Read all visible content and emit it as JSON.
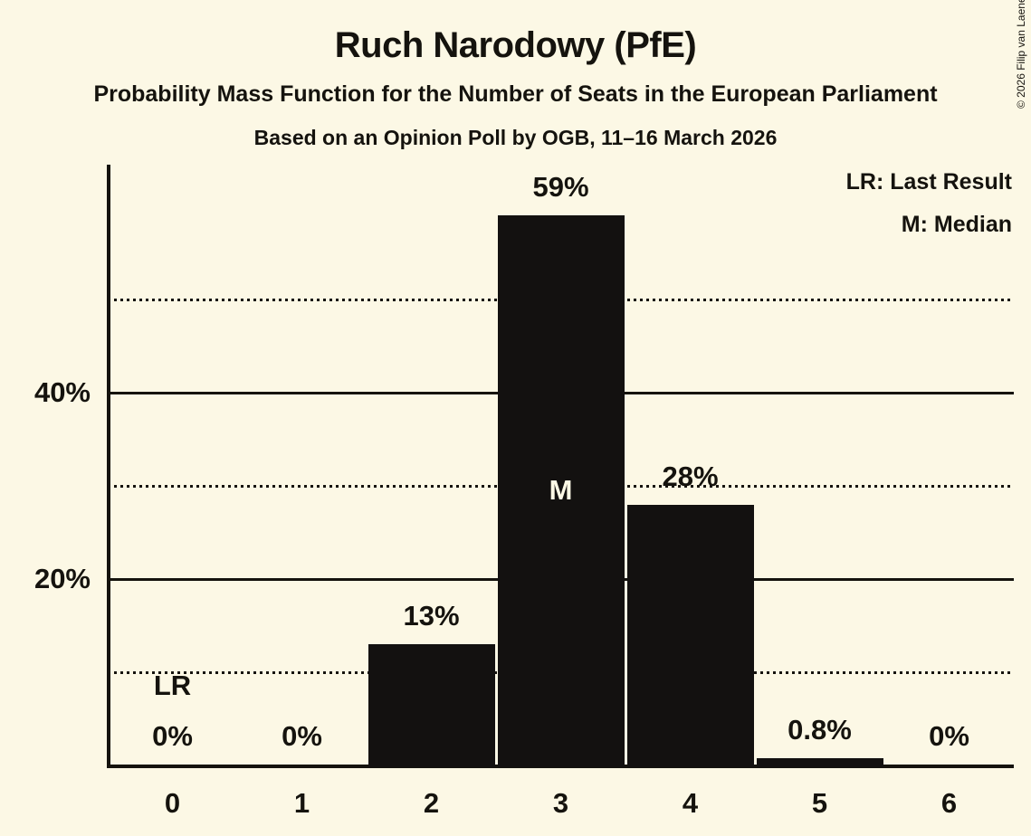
{
  "title": "Ruch Narodowy (PfE)",
  "subtitle": "Probability Mass Function for the Number of Seats in the European Parliament",
  "poll_line": "Based on an Opinion Poll by OGB, 11–16 March 2026",
  "copyright": "© 2026 Filip van Laenen",
  "legend": {
    "last_result": "LR: Last Result",
    "median": "M: Median"
  },
  "colors": {
    "background": "#FCF8E5",
    "bar": "#131110",
    "ink": "#15130E",
    "label_on_bar": "#FCF8E5"
  },
  "chart_data": {
    "type": "bar",
    "title": "Ruch Narodowy (PfE)",
    "categories": [
      "0",
      "1",
      "2",
      "3",
      "4",
      "5",
      "6"
    ],
    "values": [
      0,
      0,
      13,
      59,
      28,
      0.8,
      0
    ],
    "bar_labels": [
      "0%",
      "0%",
      "13%",
      "59%",
      "28%",
      "0.8%",
      "0%"
    ],
    "yticks": [
      {
        "value": 20,
        "label": "20%"
      },
      {
        "value": 40,
        "label": "40%"
      }
    ],
    "solid_gridlines": [
      20,
      40
    ],
    "dotted_gridlines": [
      10,
      30,
      50
    ],
    "ylim": [
      0,
      64
    ],
    "grid": "horizontal",
    "legend_position": "top-right",
    "median_seat_index": 3,
    "last_result_seat_index": 0,
    "marker_labels": {
      "median": "M",
      "last_result": "LR"
    }
  }
}
